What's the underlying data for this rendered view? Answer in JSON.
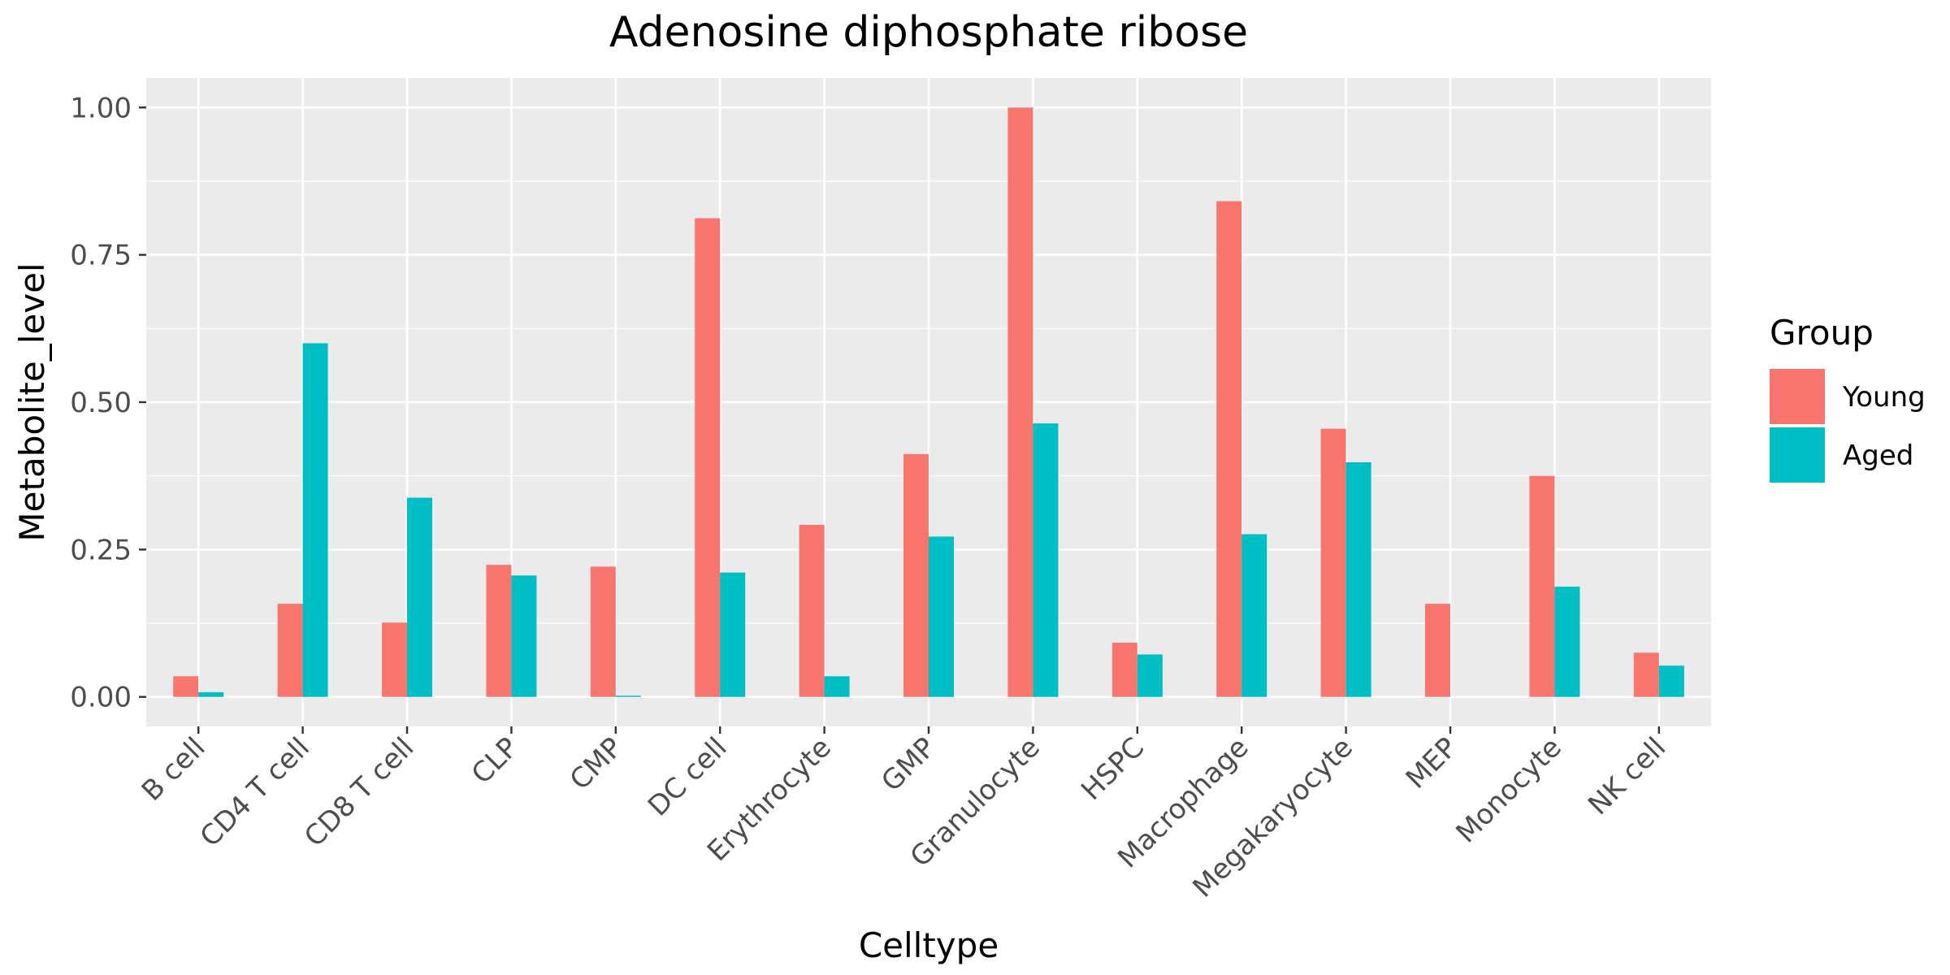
{
  "chart_data": {
    "type": "bar",
    "title": "Adenosine diphosphate ribose",
    "xlabel": "Celltype",
    "ylabel": "Metabolite_level",
    "ylim": [
      -0.05,
      1.05
    ],
    "yticks": [
      0.0,
      0.25,
      0.5,
      0.75,
      1.0
    ],
    "ytick_labels": [
      "0.00",
      "0.25",
      "0.50",
      "0.75",
      "1.00"
    ],
    "grid": true,
    "legend": {
      "title": "Group",
      "position": "right"
    },
    "categories": [
      "B cell",
      "CD4 T cell",
      "CD8 T cell",
      "CLP",
      "CMP",
      "DC cell",
      "Erythrocyte",
      "GMP",
      "Granulocyte",
      "HSPC",
      "Macrophage",
      "Megakaryocyte",
      "MEP",
      "Monocyte",
      "NK cell"
    ],
    "series": [
      {
        "name": "Young",
        "color": "#F8766D",
        "values": [
          0.035,
          0.158,
          0.126,
          0.224,
          0.221,
          0.812,
          0.292,
          0.412,
          1.0,
          0.092,
          0.841,
          0.455,
          0.158,
          0.375,
          0.075
        ]
      },
      {
        "name": "Aged",
        "color": "#00BFC4",
        "values": [
          0.008,
          0.6,
          0.338,
          0.206,
          0.002,
          0.211,
          0.035,
          0.272,
          0.464,
          0.072,
          0.276,
          0.398,
          0.0,
          0.187,
          0.053
        ]
      }
    ]
  }
}
